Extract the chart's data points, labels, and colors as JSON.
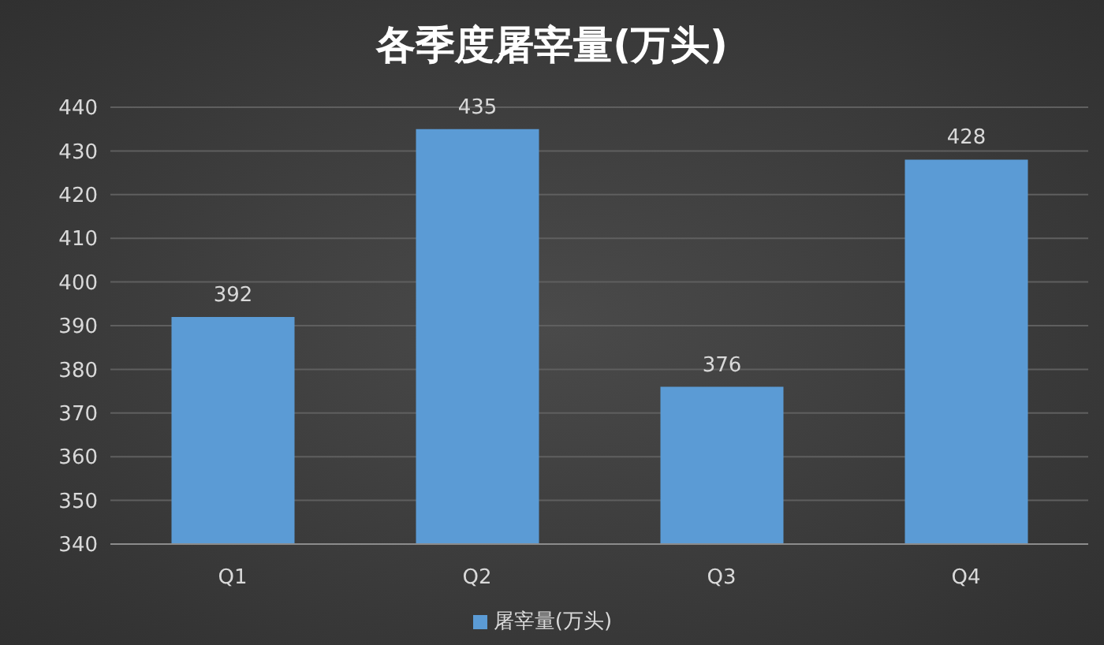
{
  "chart_data": {
    "type": "bar",
    "title": "各季度屠宰量(万头)",
    "categories": [
      "Q1",
      "Q2",
      "Q3",
      "Q4"
    ],
    "series": [
      {
        "name": "屠宰量(万头)",
        "color": "#5b9bd5",
        "values": [
          392,
          435,
          376,
          428
        ]
      }
    ],
    "ylim": [
      340,
      440
    ],
    "yticks": [
      340,
      350,
      360,
      370,
      380,
      390,
      400,
      410,
      420,
      430,
      440
    ],
    "grid": "y",
    "legend": "bottom",
    "data_labels": true
  }
}
